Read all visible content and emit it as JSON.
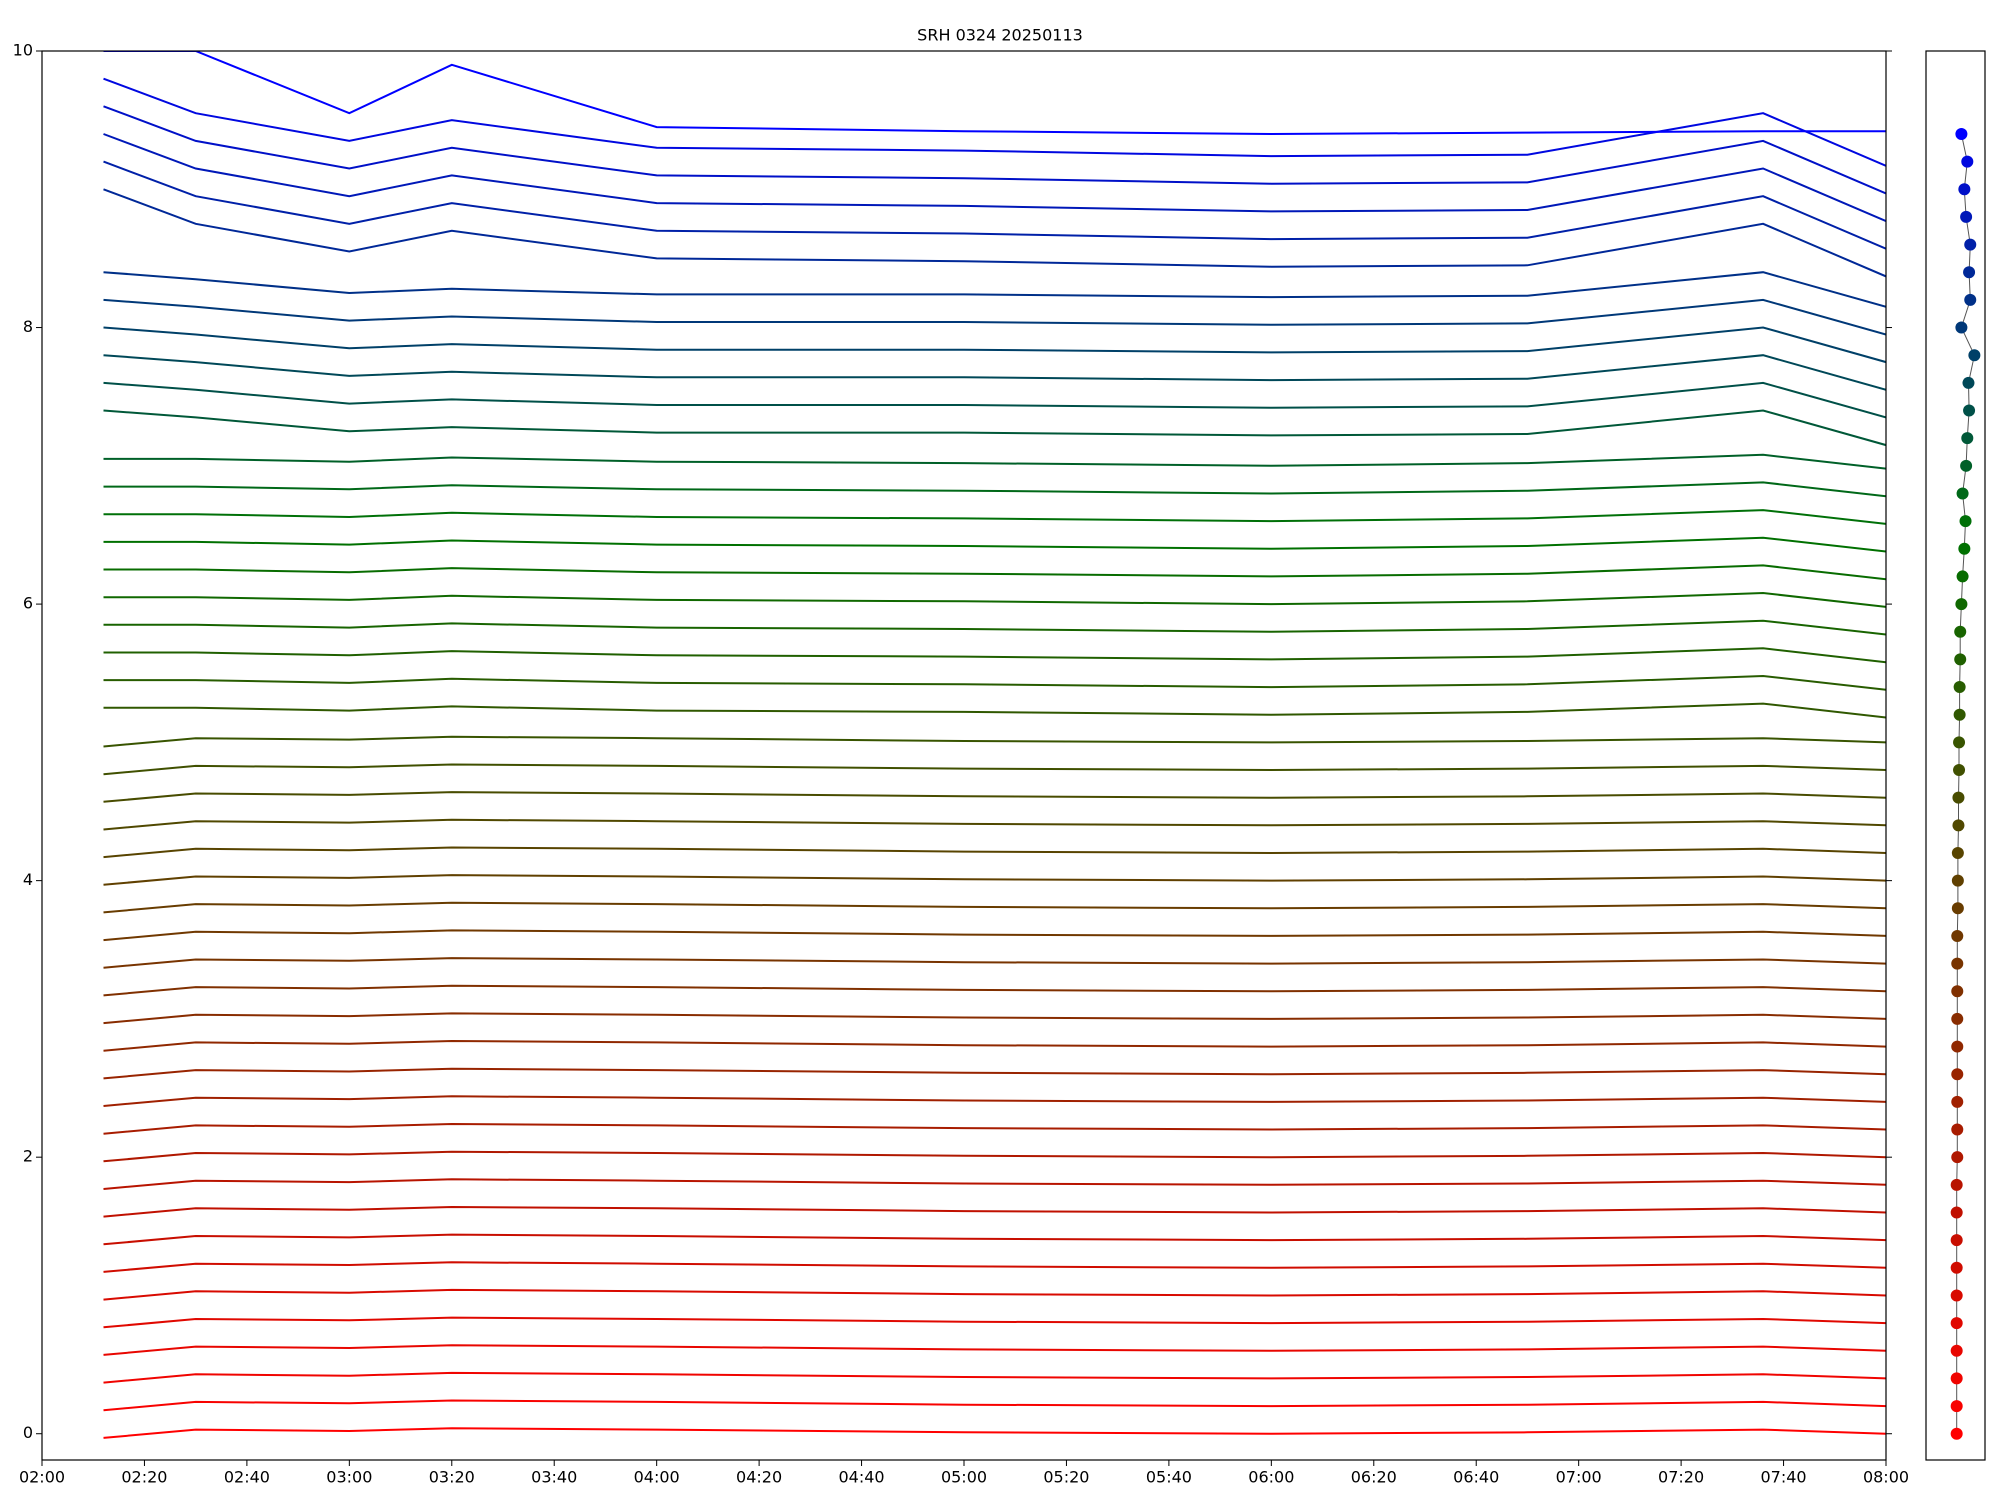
{
  "chart_data": [
    {
      "type": "line",
      "title": "SRH 0324 20250113",
      "x": [
        "02:12",
        "02:30",
        "03:00",
        "03:20",
        "04:00",
        "05:00",
        "06:00",
        "06:50",
        "07:36",
        "08:00"
      ],
      "xlim": [
        "02:00",
        "08:00"
      ],
      "xticks": [
        "02:00",
        "02:20",
        "02:40",
        "03:00",
        "03:20",
        "03:40",
        "04:00",
        "04:20",
        "04:40",
        "05:00",
        "05:20",
        "05:40",
        "06:00",
        "06:20",
        "06:40",
        "07:00",
        "07:20",
        "07:40",
        "08:00"
      ],
      "ylim": [
        -0.19,
        10
      ],
      "yticks": [
        0,
        2,
        4,
        6,
        8,
        10
      ],
      "series": [
        {
          "color": "#ff0000",
          "values": [
            -0.03,
            0.03,
            0.02,
            0.04,
            0.03,
            0.01,
            0,
            0.01,
            0.03,
            0
          ]
        },
        {
          "color": "#f80200",
          "values": [
            0.17,
            0.23,
            0.22,
            0.24,
            0.23,
            0.21,
            0.2,
            0.21,
            0.23,
            0.2
          ]
        },
        {
          "color": "#f00400",
          "values": [
            0.37,
            0.43,
            0.42,
            0.44,
            0.43,
            0.41,
            0.4,
            0.41,
            0.43,
            0.4
          ]
        },
        {
          "color": "#e80600",
          "values": [
            0.57,
            0.63,
            0.62,
            0.64,
            0.63,
            0.61,
            0.6,
            0.61,
            0.63,
            0.6
          ]
        },
        {
          "color": "#e00800",
          "values": [
            0.77,
            0.83,
            0.82,
            0.84,
            0.83,
            0.81,
            0.8,
            0.81,
            0.83,
            0.8
          ]
        },
        {
          "color": "#d80a00",
          "values": [
            0.97,
            1.03,
            1.02,
            1.04,
            1.03,
            1.01,
            1,
            1.01,
            1.03,
            1
          ]
        },
        {
          "color": "#d00c00",
          "values": [
            1.17,
            1.23,
            1.22,
            1.24,
            1.23,
            1.21,
            1.2,
            1.21,
            1.23,
            1.2
          ]
        },
        {
          "color": "#c80e00",
          "values": [
            1.37,
            1.43,
            1.42,
            1.44,
            1.43,
            1.41,
            1.4,
            1.41,
            1.43,
            1.4
          ]
        },
        {
          "color": "#c01000",
          "values": [
            1.57,
            1.63,
            1.62,
            1.64,
            1.63,
            1.61,
            1.6,
            1.61,
            1.63,
            1.6
          ]
        },
        {
          "color": "#b81400",
          "values": [
            1.77,
            1.83,
            1.82,
            1.84,
            1.83,
            1.81,
            1.8,
            1.81,
            1.83,
            1.8
          ]
        },
        {
          "color": "#b01800",
          "values": [
            1.97,
            2.03,
            2.02,
            2.04,
            2.03,
            2.01,
            2,
            2.01,
            2.03,
            2
          ]
        },
        {
          "color": "#a81c00",
          "values": [
            2.17,
            2.23,
            2.22,
            2.24,
            2.23,
            2.21,
            2.2,
            2.21,
            2.23,
            2.2
          ]
        },
        {
          "color": "#a02000",
          "values": [
            2.37,
            2.43,
            2.42,
            2.44,
            2.43,
            2.41,
            2.4,
            2.41,
            2.43,
            2.4
          ]
        },
        {
          "color": "#982400",
          "values": [
            2.57,
            2.63,
            2.62,
            2.64,
            2.63,
            2.61,
            2.6,
            2.61,
            2.63,
            2.6
          ]
        },
        {
          "color": "#902800",
          "values": [
            2.77,
            2.83,
            2.82,
            2.84,
            2.83,
            2.81,
            2.8,
            2.81,
            2.83,
            2.8
          ]
        },
        {
          "color": "#882c00",
          "values": [
            2.97,
            3.03,
            3.02,
            3.04,
            3.03,
            3.01,
            3,
            3.01,
            3.03,
            3
          ]
        },
        {
          "color": "#803000",
          "values": [
            3.17,
            3.23,
            3.22,
            3.24,
            3.23,
            3.21,
            3.2,
            3.21,
            3.23,
            3.2
          ]
        },
        {
          "color": "#783400",
          "values": [
            3.37,
            3.43,
            3.42,
            3.44,
            3.43,
            3.41,
            3.4,
            3.41,
            3.43,
            3.4
          ]
        },
        {
          "color": "#703800",
          "values": [
            3.57,
            3.63,
            3.62,
            3.64,
            3.63,
            3.61,
            3.6,
            3.61,
            3.63,
            3.6
          ]
        },
        {
          "color": "#683c00",
          "values": [
            3.77,
            3.83,
            3.82,
            3.84,
            3.83,
            3.81,
            3.8,
            3.81,
            3.83,
            3.8
          ]
        },
        {
          "color": "#604000",
          "values": [
            3.97,
            4.03,
            4.02,
            4.04,
            4.03,
            4.01,
            4,
            4.01,
            4.03,
            4
          ]
        },
        {
          "color": "#584400",
          "values": [
            4.17,
            4.23,
            4.22,
            4.24,
            4.23,
            4.21,
            4.2,
            4.21,
            4.23,
            4.2
          ]
        },
        {
          "color": "#504800",
          "values": [
            4.37,
            4.43,
            4.42,
            4.44,
            4.43,
            4.41,
            4.4,
            4.41,
            4.43,
            4.4
          ]
        },
        {
          "color": "#484c00",
          "values": [
            4.57,
            4.63,
            4.62,
            4.64,
            4.63,
            4.61,
            4.6,
            4.61,
            4.63,
            4.6
          ]
        },
        {
          "color": "#405000",
          "values": [
            4.77,
            4.83,
            4.82,
            4.84,
            4.83,
            4.81,
            4.8,
            4.81,
            4.83,
            4.8
          ]
        },
        {
          "color": "#385400",
          "values": [
            4.97,
            5.03,
            5.02,
            5.04,
            5.03,
            5.01,
            5,
            5.01,
            5.03,
            5
          ]
        },
        {
          "color": "#305800",
          "values": [
            5.25,
            5.25,
            5.23,
            5.26,
            5.23,
            5.22,
            5.2,
            5.22,
            5.28,
            5.18
          ]
        },
        {
          "color": "#285c00",
          "values": [
            5.45,
            5.45,
            5.43,
            5.46,
            5.43,
            5.42,
            5.4,
            5.42,
            5.48,
            5.38
          ]
        },
        {
          "color": "#206000",
          "values": [
            5.65,
            5.65,
            5.63,
            5.66,
            5.63,
            5.62,
            5.6,
            5.62,
            5.68,
            5.58
          ]
        },
        {
          "color": "#186400",
          "values": [
            5.85,
            5.85,
            5.83,
            5.86,
            5.83,
            5.82,
            5.8,
            5.82,
            5.88,
            5.78
          ]
        },
        {
          "color": "#106800",
          "values": [
            6.05,
            6.05,
            6.03,
            6.06,
            6.03,
            6.02,
            6,
            6.02,
            6.08,
            5.98
          ]
        },
        {
          "color": "#086c00",
          "values": [
            6.25,
            6.25,
            6.23,
            6.26,
            6.23,
            6.22,
            6.2,
            6.22,
            6.28,
            6.18
          ]
        },
        {
          "color": "#007000",
          "values": [
            6.45,
            6.45,
            6.43,
            6.46,
            6.43,
            6.42,
            6.4,
            6.42,
            6.48,
            6.38
          ]
        },
        {
          "color": "#007008",
          "values": [
            6.65,
            6.65,
            6.63,
            6.66,
            6.63,
            6.62,
            6.6,
            6.62,
            6.68,
            6.58
          ]
        },
        {
          "color": "#006818",
          "values": [
            6.85,
            6.85,
            6.83,
            6.86,
            6.83,
            6.82,
            6.8,
            6.82,
            6.88,
            6.78
          ]
        },
        {
          "color": "#006028",
          "values": [
            7.05,
            7.05,
            7.03,
            7.06,
            7.03,
            7.02,
            7,
            7.02,
            7.08,
            6.98
          ]
        },
        {
          "color": "#005838",
          "values": [
            7.4,
            7.35,
            7.25,
            7.28,
            7.24,
            7.24,
            7.22,
            7.23,
            7.4,
            7.15
          ]
        },
        {
          "color": "#005048",
          "values": [
            7.6,
            7.55,
            7.45,
            7.48,
            7.44,
            7.44,
            7.42,
            7.43,
            7.6,
            7.35
          ]
        },
        {
          "color": "#004858",
          "values": [
            7.8,
            7.75,
            7.65,
            7.68,
            7.64,
            7.64,
            7.62,
            7.63,
            7.8,
            7.55
          ]
        },
        {
          "color": "#004068",
          "values": [
            8,
            7.95,
            7.85,
            7.88,
            7.84,
            7.84,
            7.82,
            7.83,
            8,
            7.75
          ]
        },
        {
          "color": "#003878",
          "values": [
            8.2,
            8.15,
            8.05,
            8.08,
            8.04,
            8.04,
            8.02,
            8.03,
            8.2,
            7.95
          ]
        },
        {
          "color": "#003088",
          "values": [
            8.4,
            8.35,
            8.25,
            8.28,
            8.24,
            8.24,
            8.22,
            8.23,
            8.4,
            8.15
          ]
        },
        {
          "color": "#002898",
          "values": [
            9,
            8.75,
            8.55,
            8.7,
            8.5,
            8.48,
            8.44,
            8.45,
            8.75,
            8.37
          ]
        },
        {
          "color": "#0020a8",
          "values": [
            9.2,
            8.95,
            8.75,
            8.9,
            8.7,
            8.68,
            8.64,
            8.65,
            8.95,
            8.57
          ]
        },
        {
          "color": "#0018b8",
          "values": [
            9.4,
            9.15,
            8.95,
            9.1,
            8.9,
            8.88,
            8.84,
            8.85,
            9.15,
            8.77
          ]
        },
        {
          "color": "#0010c8",
          "values": [
            9.6,
            9.35,
            9.15,
            9.3,
            9.1,
            9.08,
            9.04,
            9.05,
            9.35,
            8.97
          ]
        },
        {
          "color": "#0008e0",
          "values": [
            9.8,
            9.55,
            9.35,
            9.5,
            9.3,
            9.28,
            9.24,
            9.25,
            9.55,
            9.17
          ]
        },
        {
          "color": "#0000ff",
          "values": [
            10,
            10,
            9.55,
            9.9,
            9.45,
            9.42,
            9.4,
            9.41,
            9.42,
            9.42
          ]
        }
      ]
    },
    {
      "type": "scatter",
      "xlim": [
        0,
        1
      ],
      "ylim": [
        -0.19,
        10
      ],
      "x": [
        0.52,
        0.52,
        0.52,
        0.52,
        0.52,
        0.52,
        0.52,
        0.52,
        0.52,
        0.52,
        0.53,
        0.53,
        0.53,
        0.53,
        0.53,
        0.53,
        0.53,
        0.53,
        0.53,
        0.54,
        0.54,
        0.54,
        0.55,
        0.55,
        0.56,
        0.56,
        0.57,
        0.57,
        0.58,
        0.58,
        0.6,
        0.62,
        0.65,
        0.67,
        0.62,
        0.68,
        0.7,
        0.73,
        0.72,
        0.82,
        0.6,
        0.75,
        0.73,
        0.75,
        0.68,
        0.65,
        0.7,
        0.6
      ],
      "y": [
        0,
        0.2,
        0.4,
        0.6,
        0.8,
        1,
        1.2,
        1.4,
        1.6,
        1.8,
        2,
        2.2,
        2.4,
        2.6,
        2.8,
        3,
        3.2,
        3.4,
        3.6,
        3.8,
        4,
        4.2,
        4.4,
        4.6,
        4.8,
        5,
        5.2,
        5.4,
        5.6,
        5.8,
        6,
        6.2,
        6.4,
        6.6,
        6.8,
        7,
        7.2,
        7.4,
        7.6,
        7.8,
        8,
        8.2,
        8.4,
        8.6,
        8.8,
        9,
        9.2,
        9.4
      ]
    }
  ]
}
